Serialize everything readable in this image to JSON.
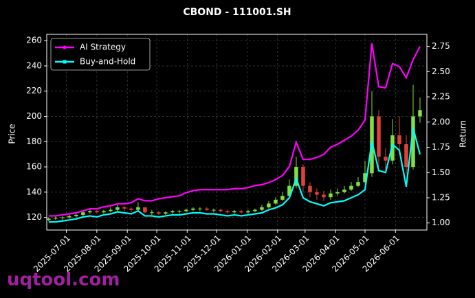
{
  "chart_data": {
    "type": "candlestick",
    "title": "CBOND - 111001.SH",
    "ylabel": "Price",
    "y2label": "Return",
    "watermark": "uqtool.com",
    "x": [
      "2025-06-13",
      "2025-06-20",
      "2025-06-27",
      "2025-07-04",
      "2025-07-11",
      "2025-07-18",
      "2025-07-25",
      "2025-08-01",
      "2025-08-08",
      "2025-08-15",
      "2025-08-22",
      "2025-08-29",
      "2025-09-05",
      "2025-09-12",
      "2025-09-19",
      "2025-09-26",
      "2025-10-03",
      "2025-10-10",
      "2025-10-17",
      "2025-10-24",
      "2025-10-31",
      "2025-11-07",
      "2025-11-14",
      "2025-11-21",
      "2025-11-28",
      "2025-12-05",
      "2025-12-12",
      "2025-12-19",
      "2025-12-26",
      "2026-01-02",
      "2026-01-09",
      "2026-01-16",
      "2026-01-23",
      "2026-01-30",
      "2026-02-06",
      "2026-02-13",
      "2026-02-20",
      "2026-02-27",
      "2026-03-06",
      "2026-03-13",
      "2026-03-20",
      "2026-03-27",
      "2026-04-03",
      "2026-04-10",
      "2026-04-17",
      "2026-04-24",
      "2026-05-01",
      "2026-05-08",
      "2026-05-15",
      "2026-05-22",
      "2026-05-29",
      "2026-06-05",
      "2026-06-12",
      "2026-06-19",
      "2026-06-26"
    ],
    "open": [
      118,
      119,
      119.5,
      120,
      121,
      122,
      124,
      125,
      124,
      125,
      126,
      128,
      127,
      126,
      128,
      124,
      124,
      123,
      124,
      125,
      125,
      126,
      127,
      127,
      126,
      126,
      125,
      124,
      125,
      124,
      125,
      126,
      128,
      131,
      134,
      137,
      145,
      160,
      145,
      140,
      138,
      136,
      139,
      140,
      142,
      145,
      148,
      155,
      200,
      168,
      165,
      185,
      178,
      160,
      200
    ],
    "high": [
      120,
      121,
      121,
      122,
      123,
      126,
      127,
      126,
      126,
      128,
      130,
      129,
      128,
      132,
      128,
      126,
      125,
      125,
      126,
      126,
      127,
      128,
      128,
      128,
      127,
      127,
      126,
      126,
      126,
      126,
      127,
      130,
      133,
      136,
      140,
      150,
      168,
      162,
      148,
      143,
      141,
      142,
      143,
      145,
      148,
      152,
      165,
      220,
      205,
      175,
      198,
      200,
      185,
      225,
      215
    ],
    "low": [
      117,
      118,
      118,
      119,
      120,
      121,
      123,
      123,
      123,
      124,
      125,
      125,
      124,
      125,
      123,
      122,
      122,
      122,
      123,
      123,
      124,
      125,
      125,
      125,
      124,
      124,
      123,
      123,
      123,
      123,
      124,
      125,
      127,
      130,
      133,
      136,
      143,
      140,
      136,
      134,
      133,
      134,
      137,
      139,
      141,
      144,
      147,
      152,
      160,
      158,
      162,
      170,
      155,
      158,
      195
    ],
    "close": [
      119,
      119.5,
      120,
      121,
      122,
      124,
      125,
      124,
      125,
      126,
      128,
      127,
      126,
      128,
      124,
      124,
      123,
      124,
      125,
      125,
      126,
      127,
      127,
      126,
      126,
      125,
      124,
      125,
      124,
      125,
      126,
      128,
      131,
      134,
      137,
      145,
      160,
      145,
      140,
      138,
      136,
      139,
      140,
      142,
      145,
      148,
      155,
      200,
      168,
      165,
      185,
      178,
      160,
      200,
      205
    ],
    "up_color": "#7fe040",
    "down_color": "#e0403a",
    "series": [
      {
        "name": "AI Strategy",
        "color": "#ff00ff",
        "axis": "y2",
        "values": [
          1.07,
          1.07,
          1.08,
          1.09,
          1.1,
          1.12,
          1.14,
          1.14,
          1.16,
          1.17,
          1.19,
          1.19,
          1.2,
          1.24,
          1.22,
          1.22,
          1.24,
          1.25,
          1.26,
          1.27,
          1.3,
          1.32,
          1.33,
          1.33,
          1.33,
          1.33,
          1.33,
          1.34,
          1.34,
          1.35,
          1.37,
          1.38,
          1.4,
          1.43,
          1.47,
          1.56,
          1.8,
          1.63,
          1.63,
          1.65,
          1.68,
          1.75,
          1.78,
          1.82,
          1.86,
          1.92,
          2.02,
          2.78,
          2.35,
          2.34,
          2.58,
          2.55,
          2.44,
          2.62,
          2.75
        ]
      },
      {
        "name": "Buy-and-Hold",
        "color": "#00ffff",
        "axis": "y2",
        "values": [
          1.01,
          1.01,
          1.02,
          1.03,
          1.04,
          1.06,
          1.07,
          1.06,
          1.08,
          1.09,
          1.11,
          1.1,
          1.09,
          1.12,
          1.07,
          1.07,
          1.06,
          1.07,
          1.08,
          1.08,
          1.09,
          1.1,
          1.1,
          1.09,
          1.09,
          1.08,
          1.07,
          1.08,
          1.07,
          1.08,
          1.09,
          1.1,
          1.13,
          1.15,
          1.18,
          1.25,
          1.44,
          1.25,
          1.21,
          1.19,
          1.17,
          1.2,
          1.21,
          1.22,
          1.25,
          1.28,
          1.33,
          1.81,
          1.52,
          1.5,
          1.78,
          1.72,
          1.36,
          1.94,
          1.68
        ]
      }
    ],
    "xlim": [
      "2025-06-11",
      "2026-07-03"
    ],
    "xticks": [
      "2025-07-01",
      "2025-08-01",
      "2025-09-01",
      "2025-10-01",
      "2025-11-01",
      "2025-12-01",
      "2026-01-01",
      "2026-02-01",
      "2026-03-01",
      "2026-04-01",
      "2026-05-01",
      "2026-06-01"
    ],
    "ylim": [
      110,
      265
    ],
    "yticks": [
      120,
      140,
      160,
      180,
      200,
      220,
      240,
      260
    ],
    "y2lim": [
      0.93,
      2.87
    ],
    "y2ticks": [
      {
        "value": 1,
        "label": "1.00"
      },
      1.25,
      {
        "value": 1.5,
        "label": "1.50"
      },
      1.75,
      {
        "value": 2,
        "label": "2.00"
      },
      2.25,
      {
        "value": 2.5,
        "label": "2.50"
      },
      2.75
    ],
    "grid": true,
    "legend": "upper left"
  }
}
